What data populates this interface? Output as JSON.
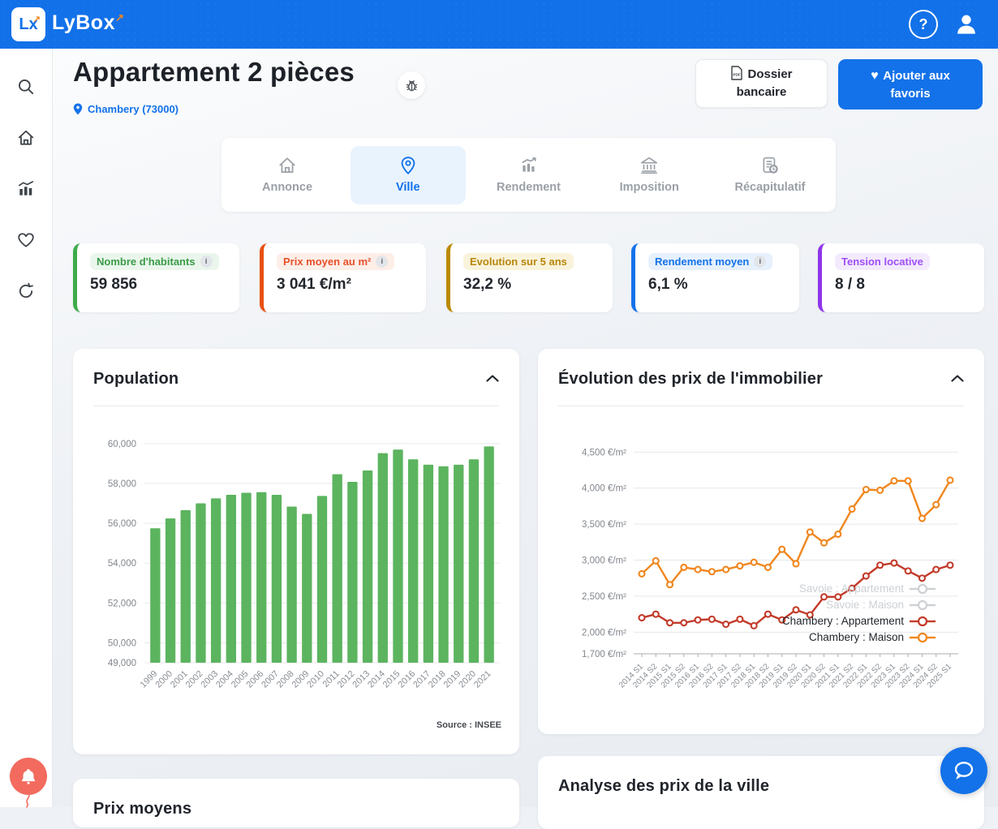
{
  "topbar": {
    "brand": "LyBox",
    "logo_monogram": "Lx",
    "accent_color": "#1271e9"
  },
  "header": {
    "title": "Appartement 2 pièces",
    "location": "Chambery (73000)",
    "dossier_button": "Dossier bancaire",
    "favorites_button": "Ajouter aux favoris"
  },
  "tabs": [
    {
      "label": "Annonce",
      "active": false
    },
    {
      "label": "Ville",
      "active": true
    },
    {
      "label": "Rendement",
      "active": false
    },
    {
      "label": "Imposition",
      "active": false
    },
    {
      "label": "Récapitulatif",
      "active": false
    }
  ],
  "stats": [
    {
      "label": "Nombre d'habitants",
      "value": "59 856",
      "has_info": true,
      "color": "#3dab4b"
    },
    {
      "label": "Prix moyen au m²",
      "value": "3 041 €/m²",
      "has_info": true,
      "color": "#e8500f"
    },
    {
      "label": "Evolution sur 5 ans",
      "value": "32,2 %",
      "has_info": false,
      "color": "#bb8a00"
    },
    {
      "label": "Rendement moyen",
      "value": "6,1 %",
      "has_info": true,
      "color": "#1372e9"
    },
    {
      "label": "Tension locative",
      "value": "8 / 8",
      "has_info": false,
      "color": "#8f35ea"
    }
  ],
  "cards": {
    "population_title": "Population",
    "population_source": "Source : INSEE",
    "prices_title": "Évolution des prix de l'immobilier",
    "analysis_title": "Analyse des prix de la ville",
    "bottom_left_title": "Prix moyens"
  },
  "chart_data": [
    {
      "type": "bar",
      "title": "Population",
      "categories": [
        "1999",
        "2000",
        "2001",
        "2002",
        "2003",
        "2004",
        "2005",
        "2006",
        "2007",
        "2008",
        "2009",
        "2010",
        "2011",
        "2012",
        "2013",
        "2014",
        "2015",
        "2016",
        "2017",
        "2018",
        "2019",
        "2020",
        "2021"
      ],
      "values": [
        55750,
        56240,
        56660,
        57000,
        57250,
        57430,
        57530,
        57560,
        57430,
        56840,
        56470,
        57370,
        58460,
        58080,
        58650,
        59520,
        59700,
        59210,
        58940,
        58860,
        58940,
        59210,
        59856
      ],
      "ylim": [
        49000,
        60400
      ],
      "yticks": [
        {
          "v": 49000,
          "label": "49,000"
        },
        {
          "v": 50000,
          "label": "50,000"
        },
        {
          "v": 52000,
          "label": "52,000"
        },
        {
          "v": 54000,
          "label": "54,000"
        },
        {
          "v": 56000,
          "label": "56,000"
        },
        {
          "v": 58000,
          "label": "58,000"
        },
        {
          "v": 60000,
          "label": "60,000"
        }
      ],
      "bar_color": "#5cb45f",
      "grid": true,
      "source": "Source : INSEE"
    },
    {
      "type": "line",
      "title": "Évolution des prix de l'immobilier",
      "x": [
        "2014 S1",
        "2014 S2",
        "2015 S1",
        "2015 S2",
        "2016 S1",
        "2016 S2",
        "2017 S1",
        "2017 S2",
        "2018 S1",
        "2018 S2",
        "2019 S1",
        "2019 S2",
        "2020 S1",
        "2020 S2",
        "2021 S1",
        "2021 S2",
        "2022 S1",
        "2022 S2",
        "2023 S1",
        "2023 S2",
        "2024 S1",
        "2024 S2",
        "2025 S1"
      ],
      "ylim": [
        1700,
        4650
      ],
      "yticks": [
        {
          "v": 1700,
          "label": "1,700 €/m²"
        },
        {
          "v": 2000,
          "label": "2,000 €/m²"
        },
        {
          "v": 2500,
          "label": "2,500 €/m²"
        },
        {
          "v": 3000,
          "label": "3,000 €/m²"
        },
        {
          "v": 3500,
          "label": "3,500 €/m²"
        },
        {
          "v": 4000,
          "label": "4,000 €/m²"
        },
        {
          "v": 4500,
          "label": "4,500 €/m²"
        }
      ],
      "grid": true,
      "legend_position": "inside-right",
      "series": [
        {
          "name": "Savoie : Appartement",
          "color": "#cdd0d4",
          "disabled": true,
          "values": []
        },
        {
          "name": "Savoie : Maison",
          "color": "#cdd0d4",
          "disabled": true,
          "values": []
        },
        {
          "name": "Chambery : Appartement",
          "color": "#c23b2a",
          "disabled": false,
          "values": [
            2200,
            2250,
            2130,
            2130,
            2170,
            2180,
            2110,
            2180,
            2090,
            2250,
            2170,
            2310,
            2240,
            2490,
            2490,
            2610,
            2780,
            2930,
            2960,
            2850,
            2750,
            2870,
            2930
          ]
        },
        {
          "name": "Chambery : Maison",
          "color": "#f0861e",
          "disabled": false,
          "values": [
            2810,
            2990,
            2660,
            2900,
            2870,
            2840,
            2870,
            2920,
            2970,
            2900,
            3150,
            2950,
            3390,
            3240,
            3360,
            3710,
            3980,
            3970,
            4100,
            4100,
            3580,
            3770,
            4110
          ]
        }
      ]
    }
  ]
}
